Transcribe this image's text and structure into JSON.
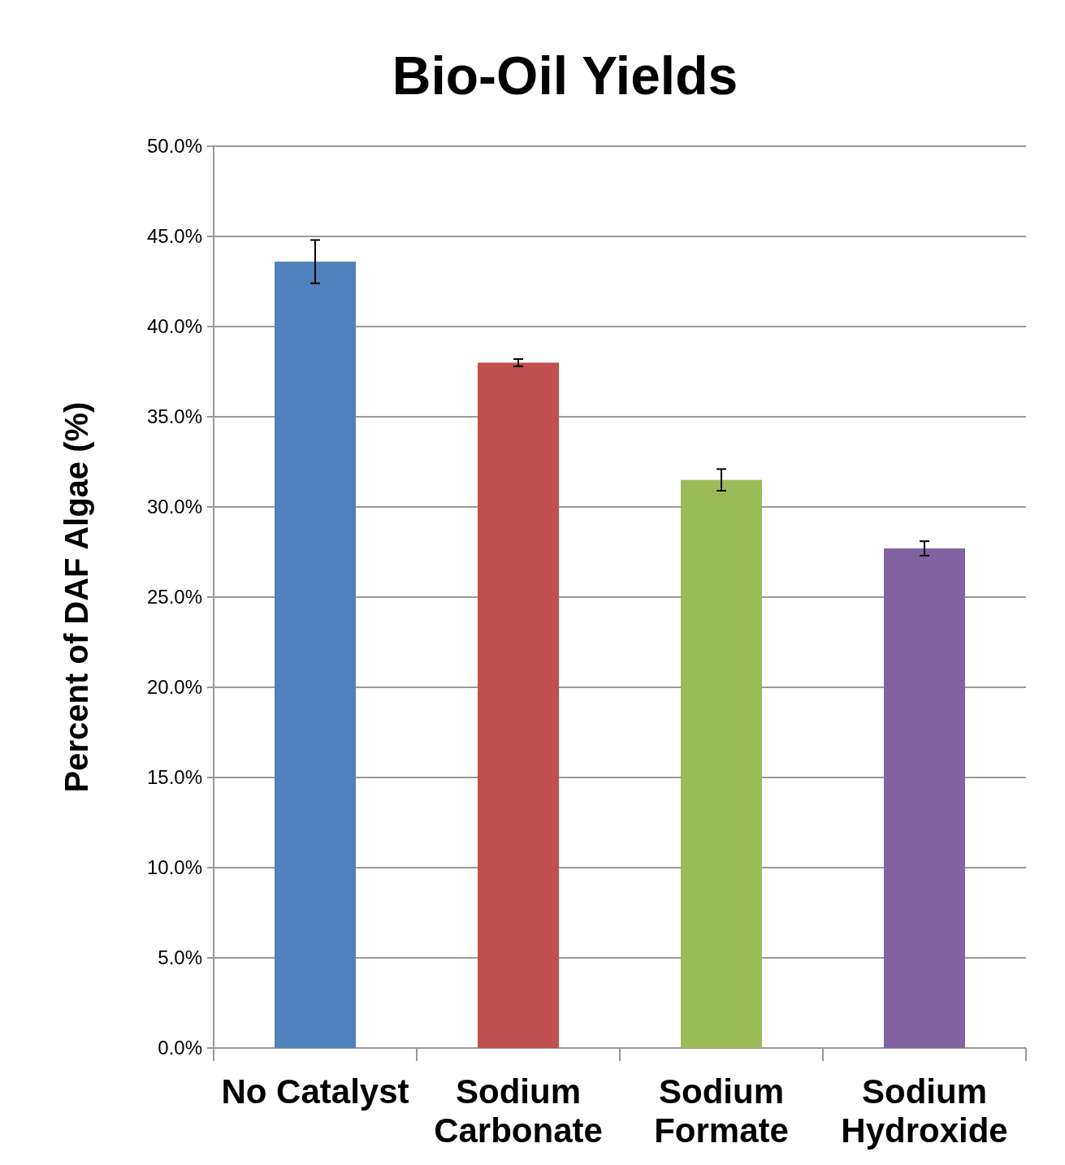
{
  "chart_data": {
    "type": "bar",
    "title": "Bio-Oil Yields",
    "ylabel": "Percent of DAF Algae (%)",
    "categories": [
      "No Catalyst",
      "Sodium Carbonate",
      "Sodium Formate",
      "Sodium Hydroxide"
    ],
    "values": [
      43.6,
      38.0,
      31.5,
      27.7
    ],
    "colors": [
      "#4f81bd",
      "#c0504d",
      "#9bbb59",
      "#8064a2"
    ],
    "errors": [
      1.2,
      0.2,
      0.6,
      0.4
    ],
    "ylim": [
      0,
      50
    ],
    "yticks": [
      {
        "value": 0,
        "label": "0.0%"
      },
      {
        "value": 5,
        "label": "5.0%"
      },
      {
        "value": 10,
        "label": "10.0%"
      },
      {
        "value": 15,
        "label": "15.0%"
      },
      {
        "value": 20,
        "label": "20.0%"
      },
      {
        "value": 25,
        "label": "25.0%"
      },
      {
        "value": 30,
        "label": "30.0%"
      },
      {
        "value": 35,
        "label": "35.0%"
      },
      {
        "value": 40,
        "label": "40.0%"
      },
      {
        "value": 45,
        "label": "45.0%"
      },
      {
        "value": 50,
        "label": "50.0%"
      }
    ],
    "grid": "y"
  }
}
